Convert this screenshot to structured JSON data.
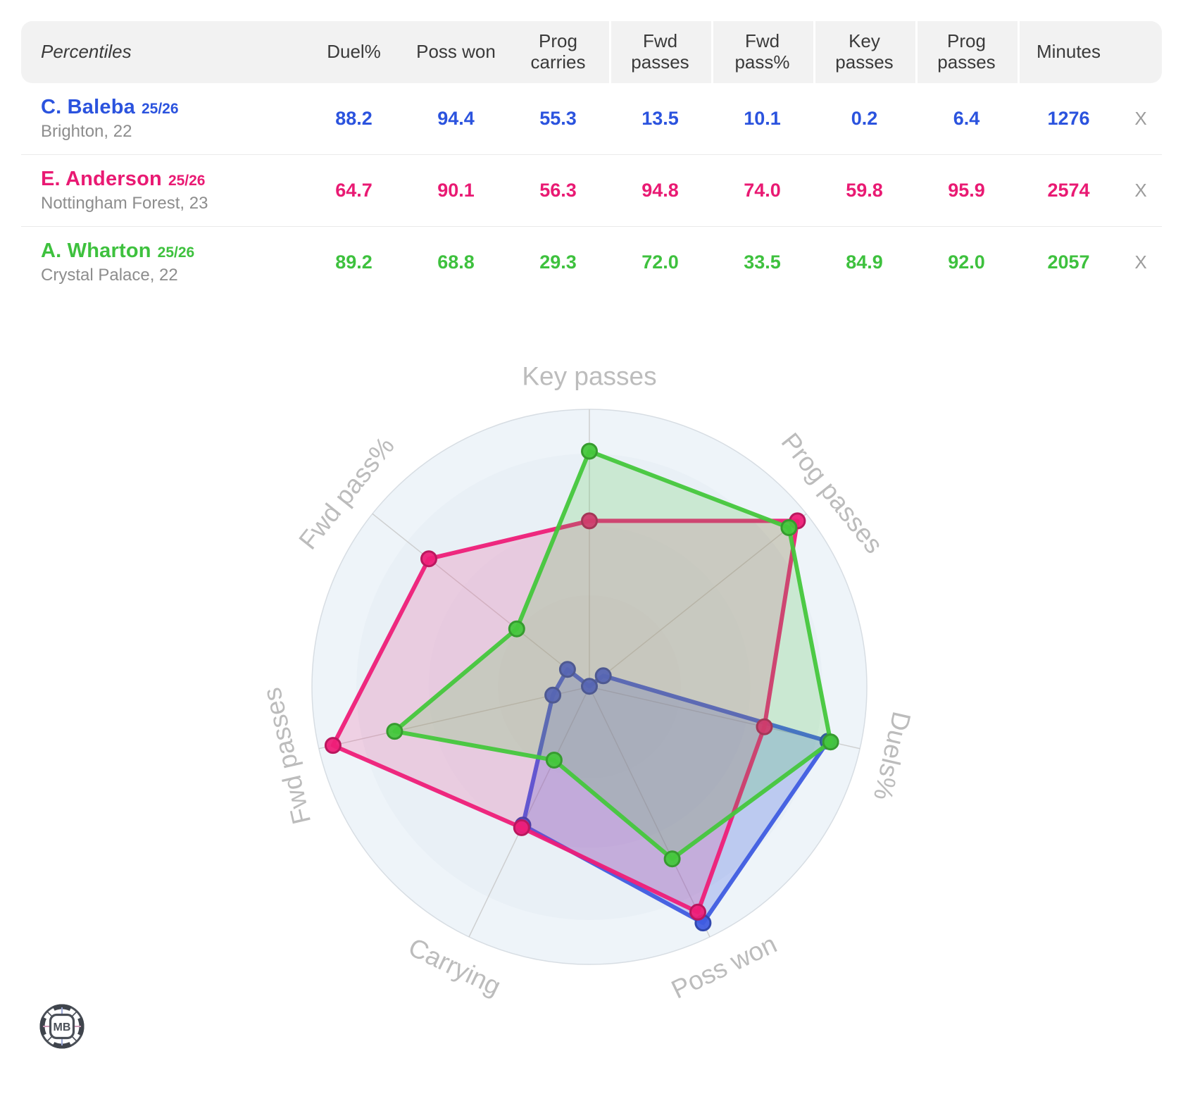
{
  "table": {
    "first_col_label": "Percentiles",
    "columns": [
      "Duel%",
      "Poss won",
      "Prog carries",
      "Fwd passes",
      "Fwd pass%",
      "Key passes",
      "Prog passes",
      "Minutes"
    ],
    "rows": [
      {
        "name": "C. Baleba",
        "season": "25/26",
        "club": "Brighton, 22",
        "color": "#2b53de",
        "values": [
          "88.2",
          "94.4",
          "55.3",
          "13.5",
          "10.1",
          "0.2",
          "6.4",
          "1276"
        ],
        "remove_label": "X"
      },
      {
        "name": "E. Anderson",
        "season": "25/26",
        "club": "Nottingham Forest, 23",
        "color": "#e91a73",
        "values": [
          "64.7",
          "90.1",
          "56.3",
          "94.8",
          "74.0",
          "59.8",
          "95.9",
          "2574"
        ],
        "remove_label": "X"
      },
      {
        "name": "A. Wharton",
        "season": "25/26",
        "club": "Crystal Palace, 22",
        "color": "#3ec13e",
        "values": [
          "89.2",
          "68.8",
          "29.3",
          "72.0",
          "33.5",
          "84.9",
          "92.0",
          "2057"
        ],
        "remove_label": "X"
      }
    ]
  },
  "chart_data": {
    "type": "radar",
    "title": "",
    "categories": [
      "Key passes",
      "Prog passes",
      "Duels%",
      "Poss won",
      "Carrying",
      "Fwd passes",
      "Fwd pass%"
    ],
    "range": [
      0,
      100
    ],
    "grid": "concentric-rings",
    "legend_position": "none",
    "series": [
      {
        "name": "C. Baleba 25/26",
        "color": "#3f5ce0",
        "fill_opacity": 0.26,
        "values": [
          0.2,
          6.4,
          88.2,
          94.4,
          55.3,
          13.5,
          10.1
        ]
      },
      {
        "name": "E. Anderson 25/26",
        "color": "#ee1e78",
        "fill_opacity": 0.17,
        "values": [
          59.8,
          95.9,
          64.7,
          90.1,
          56.3,
          94.8,
          74.0
        ]
      },
      {
        "name": "A. Wharton 25/26",
        "color": "#45c73c",
        "fill_opacity": 0.19,
        "values": [
          84.9,
          92.0,
          89.2,
          68.8,
          29.3,
          72.0,
          33.5
        ]
      }
    ],
    "style": {
      "bg_ring_colors": [
        "#eef4f9",
        "#e9f0f6",
        "#e6edf4",
        "#e4ebf2"
      ],
      "ring_stroke": "#d7dde3",
      "spoke_color": "#c9c9c9",
      "label_color": "#bcbcbc"
    }
  },
  "logo": {
    "text": "MB"
  }
}
